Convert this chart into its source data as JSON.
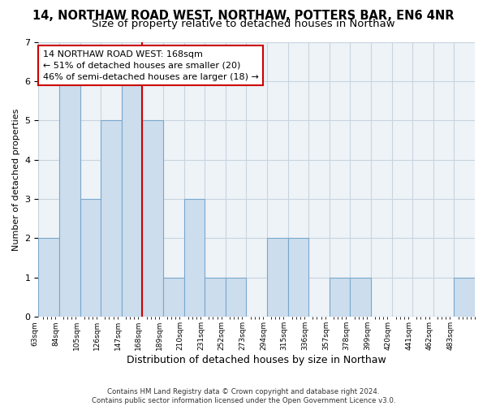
{
  "title": "14, NORTHAW ROAD WEST, NORTHAW, POTTERS BAR, EN6 4NR",
  "subtitle": "Size of property relative to detached houses in Northaw",
  "xlabel": "Distribution of detached houses by size in Northaw",
  "ylabel": "Number of detached properties",
  "footer_lines": [
    "Contains HM Land Registry data © Crown copyright and database right 2024.",
    "Contains public sector information licensed under the Open Government Licence v3.0."
  ],
  "bin_labels": [
    "63sqm",
    "84sqm",
    "105sqm",
    "126sqm",
    "147sqm",
    "168sqm",
    "189sqm",
    "210sqm",
    "231sqm",
    "252sqm",
    "273sqm",
    "294sqm",
    "315sqm",
    "336sqm",
    "357sqm",
    "378sqm",
    "399sqm",
    "420sqm",
    "441sqm",
    "462sqm",
    "483sqm"
  ],
  "bar_values": [
    2,
    6,
    3,
    5,
    6,
    5,
    1,
    3,
    1,
    1,
    0,
    2,
    2,
    0,
    1,
    1,
    0,
    0,
    0,
    0,
    1
  ],
  "bar_color": "#ccdded",
  "bar_edge_color": "#7aa8cc",
  "property_line_index": 5,
  "property_line_color": "#cc0000",
  "annotation_text": "14 NORTHAW ROAD WEST: 168sqm\n← 51% of detached houses are smaller (20)\n46% of semi-detached houses are larger (18) →",
  "annotation_box_facecolor": "#ffffff",
  "annotation_box_edgecolor": "#cc0000",
  "ylim": [
    0,
    7
  ],
  "yticks": [
    0,
    1,
    2,
    3,
    4,
    5,
    6,
    7
  ],
  "grid_color": "#c8d4de",
  "background_color": "#ffffff",
  "plot_bg_color": "#eef3f8",
  "title_fontsize": 10.5,
  "subtitle_fontsize": 9.5,
  "ylabel_fontsize": 8,
  "xlabel_fontsize": 9
}
